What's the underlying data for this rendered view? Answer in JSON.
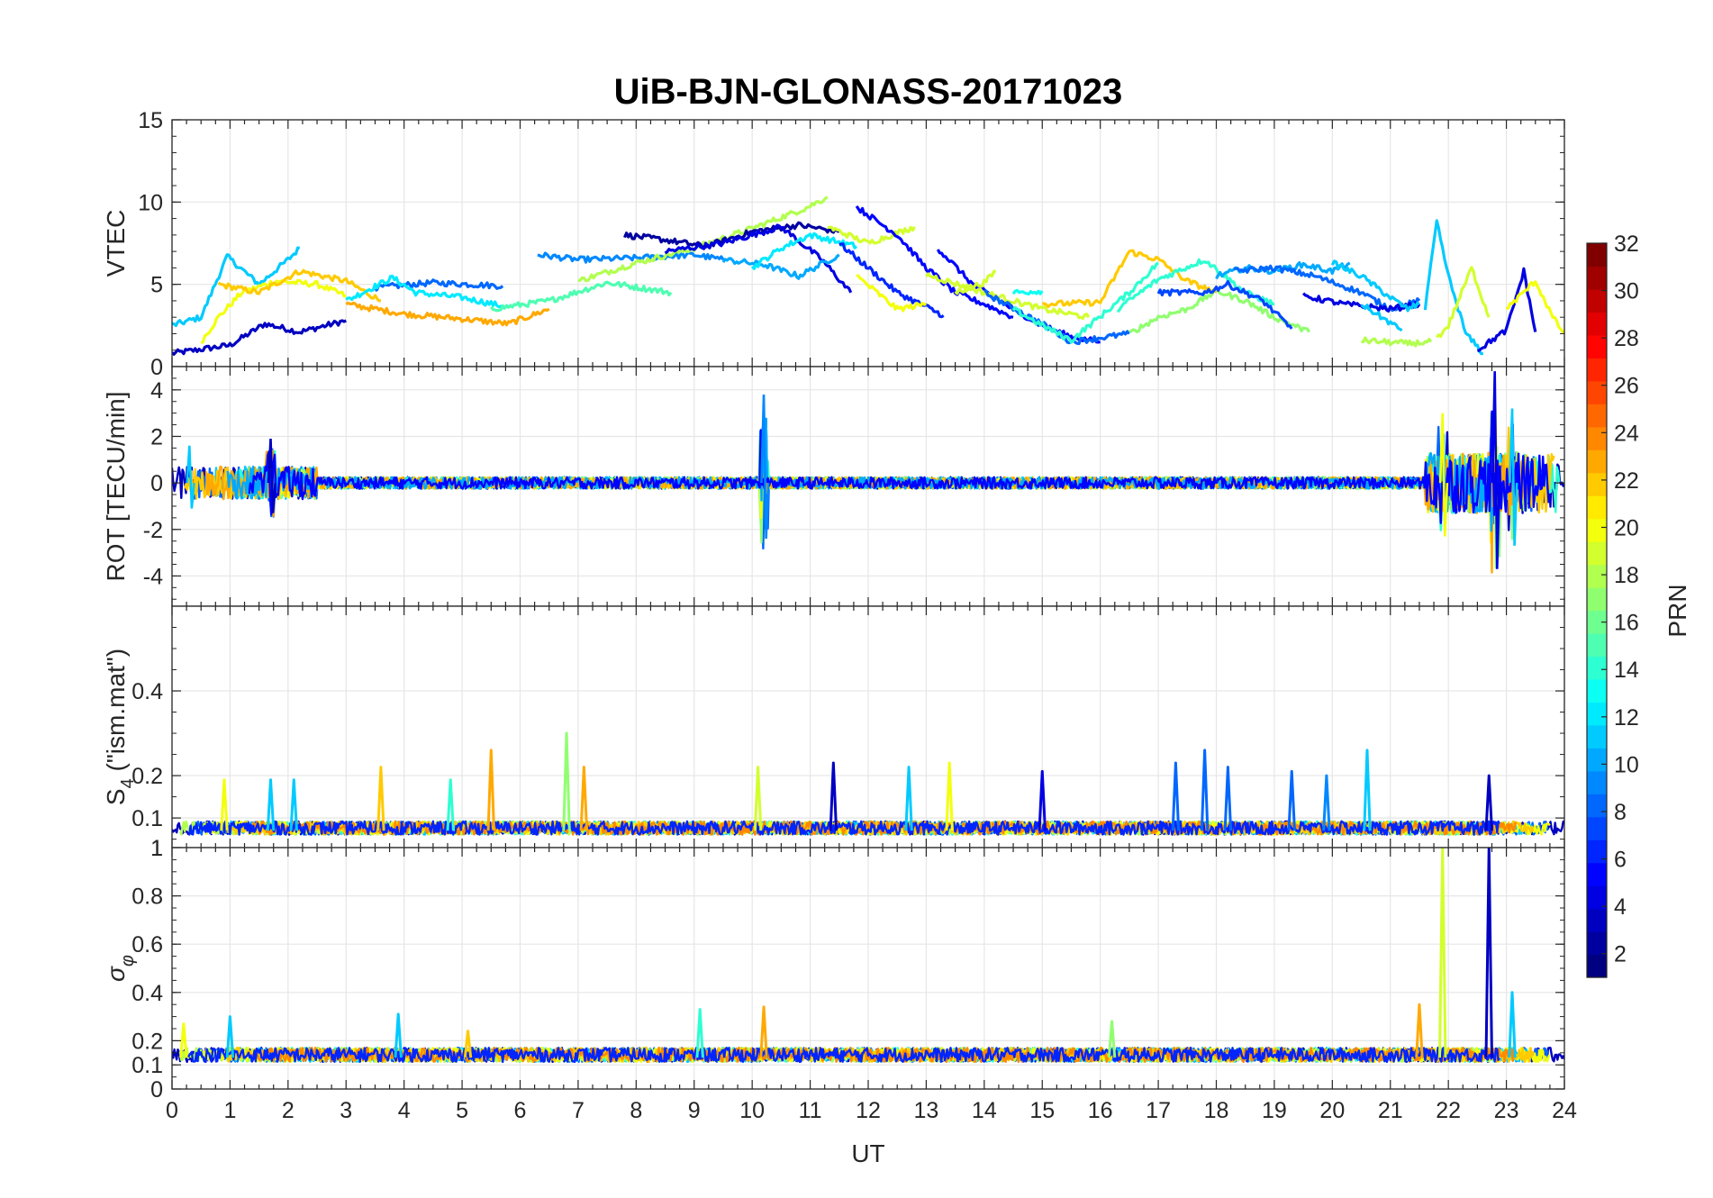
{
  "figure": {
    "title": "UiB-BJN-GLONASS-20171023"
  },
  "chart_data": [
    {
      "type": "line",
      "panel": "VTEC",
      "ylabel": "VTEC",
      "xlim": [
        0,
        24
      ],
      "ylim": [
        0,
        15
      ],
      "yticks": [
        0,
        5,
        10,
        15
      ],
      "grid": true,
      "series": [
        {
          "prn": 3,
          "points": [
            [
              0,
              0.8
            ],
            [
              1,
              1.3
            ],
            [
              1.6,
              2.6
            ],
            [
              2.2,
              2.1
            ],
            [
              3,
              2.8
            ]
          ]
        },
        {
          "prn": 11,
          "points": [
            [
              0,
              2.5
            ],
            [
              0.5,
              3
            ],
            [
              0.95,
              6.7
            ],
            [
              1.5,
              5
            ],
            [
              2,
              6.5
            ],
            [
              2.2,
              7.2
            ]
          ]
        },
        {
          "prn": 20,
          "points": [
            [
              0.5,
              1.5
            ],
            [
              0.8,
              3
            ],
            [
              1.2,
              4.5
            ],
            [
              1.8,
              5.2
            ],
            [
              2.5,
              5
            ],
            [
              3,
              4.3
            ]
          ]
        },
        {
          "prn": 22,
          "points": [
            [
              0.8,
              5
            ],
            [
              1.5,
              4.5
            ],
            [
              2.2,
              5.8
            ],
            [
              3,
              5.2
            ],
            [
              3.6,
              4
            ]
          ]
        },
        {
          "prn": 8,
          "points": [
            [
              3.5,
              4.8
            ],
            [
              4.5,
              5.1
            ],
            [
              5.7,
              4.9
            ]
          ]
        },
        {
          "prn": 12,
          "points": [
            [
              3,
              4
            ],
            [
              3.8,
              5.4
            ],
            [
              4.2,
              4.5
            ],
            [
              5,
              4.2
            ],
            [
              5.8,
              3.6
            ]
          ]
        },
        {
          "prn": 23,
          "points": [
            [
              3,
              3.8
            ],
            [
              4,
              3.2
            ],
            [
              5,
              2.9
            ],
            [
              5.8,
              2.6
            ],
            [
              6.5,
              3.5
            ]
          ]
        },
        {
          "prn": 9,
          "points": [
            [
              6.3,
              6.8
            ],
            [
              7,
              6.5
            ],
            [
              8,
              6.6
            ],
            [
              9,
              6.8
            ],
            [
              9.5,
              6.5
            ]
          ]
        },
        {
          "prn": 15,
          "points": [
            [
              5.5,
              3.5
            ],
            [
              6.5,
              4
            ],
            [
              7.5,
              5.1
            ],
            [
              8.6,
              4.5
            ]
          ]
        },
        {
          "prn": 18,
          "points": [
            [
              7,
              5.2
            ],
            [
              8,
              6.3
            ],
            [
              9,
              7.2
            ],
            [
              10,
              8.4
            ],
            [
              10.9,
              9.6
            ],
            [
              11.3,
              10.3
            ]
          ]
        },
        {
          "prn": 2,
          "points": [
            [
              7.8,
              8
            ],
            [
              8.5,
              7.7
            ],
            [
              9.2,
              7.3
            ],
            [
              10,
              8.2
            ],
            [
              10.8,
              8.6
            ],
            [
              11.5,
              8.2
            ]
          ]
        },
        {
          "prn": 4,
          "points": [
            [
              8.5,
              7
            ],
            [
              9.5,
              7.5
            ],
            [
              10.5,
              8.5
            ],
            [
              11.2,
              6.5
            ],
            [
              11.7,
              4.5
            ]
          ]
        },
        {
          "prn": 10,
          "points": [
            [
              9.5,
              6.5
            ],
            [
              10.2,
              6.2
            ],
            [
              10.8,
              5.5
            ],
            [
              11.5,
              6.8
            ]
          ]
        },
        {
          "prn": 12,
          "points": [
            [
              10,
              6
            ],
            [
              10.5,
              7.2
            ],
            [
              11,
              8
            ],
            [
              11.8,
              7.3
            ]
          ]
        },
        {
          "prn": 19,
          "points": [
            [
              11.3,
              8.5
            ],
            [
              12,
              7.5
            ],
            [
              12.8,
              8.5
            ]
          ]
        },
        {
          "prn": 5,
          "points": [
            [
              11.8,
              9.7
            ],
            [
              12.5,
              8
            ],
            [
              13,
              6
            ],
            [
              13.5,
              4.5
            ],
            [
              14,
              3.8
            ],
            [
              14.5,
              3
            ]
          ]
        },
        {
          "prn": 6,
          "points": [
            [
              11.5,
              7.5
            ],
            [
              12.5,
              4.5
            ],
            [
              13.3,
              3.1
            ]
          ]
        },
        {
          "prn": 20,
          "points": [
            [
              11.8,
              5.5
            ],
            [
              12.5,
              3.5
            ],
            [
              13,
              3.8
            ]
          ]
        },
        {
          "prn": 5,
          "points": [
            [
              13.2,
              7.2
            ],
            [
              13.8,
              5
            ],
            [
              14.5,
              3.5
            ],
            [
              15,
              2.5
            ],
            [
              15.5,
              1.8
            ],
            [
              16,
              1.5
            ]
          ]
        },
        {
          "prn": 19,
          "points": [
            [
              13.5,
              4.5
            ],
            [
              14,
              5.1
            ],
            [
              14.2,
              5.8
            ]
          ]
        },
        {
          "prn": 19,
          "points": [
            [
              13,
              5.6
            ],
            [
              14,
              4.5
            ],
            [
              15,
              3.5
            ],
            [
              15.8,
              3
            ]
          ]
        },
        {
          "prn": 8,
          "points": [
            [
              14,
              4.5
            ],
            [
              15,
              2.6
            ],
            [
              15.5,
              1.5
            ],
            [
              16.5,
              2
            ]
          ]
        },
        {
          "prn": 14,
          "points": [
            [
              14.5,
              3.5
            ],
            [
              15,
              2.5
            ],
            [
              15.5,
              1.6
            ],
            [
              16.5,
              4.5
            ],
            [
              17,
              6.3
            ]
          ]
        },
        {
          "prn": 13,
          "points": [
            [
              14.5,
              4.5
            ],
            [
              15,
              4.6
            ]
          ]
        },
        {
          "prn": 22,
          "points": [
            [
              15,
              3.8
            ],
            [
              16,
              3.9
            ],
            [
              16.5,
              7
            ],
            [
              17,
              6.5
            ],
            [
              17.5,
              5.2
            ],
            [
              18,
              4.5
            ]
          ]
        },
        {
          "prn": 17,
          "points": [
            [
              16.5,
              2
            ],
            [
              17,
              3
            ],
            [
              17.5,
              3.5
            ],
            [
              18,
              4.6
            ],
            [
              18.5,
              4
            ],
            [
              19,
              3
            ],
            [
              19.6,
              2.1
            ]
          ]
        },
        {
          "prn": 14,
          "points": [
            [
              16.3,
              3.5
            ],
            [
              17,
              5.3
            ],
            [
              17.8,
              6.5
            ],
            [
              18.5,
              4.5
            ],
            [
              19,
              3.8
            ]
          ]
        },
        {
          "prn": 7,
          "points": [
            [
              17,
              4.5
            ],
            [
              17.8,
              4.5
            ],
            [
              18.2,
              5
            ],
            [
              18.8,
              4
            ],
            [
              19.3,
              2.3
            ]
          ]
        },
        {
          "prn": 10,
          "points": [
            [
              18,
              5.5
            ],
            [
              18.5,
              6
            ],
            [
              19,
              5.8
            ],
            [
              19.5,
              6.2
            ],
            [
              20,
              5.8
            ],
            [
              20.3,
              6.3
            ]
          ]
        },
        {
          "prn": 8,
          "points": [
            [
              18.3,
              5.8
            ],
            [
              19,
              6
            ],
            [
              19.7,
              5.5
            ],
            [
              20.5,
              4.5
            ],
            [
              21,
              3.5
            ],
            [
              21.5,
              4
            ]
          ]
        },
        {
          "prn": 4,
          "points": [
            [
              19.5,
              4.3
            ],
            [
              20.2,
              3.8
            ],
            [
              21,
              3.5
            ],
            [
              21.5,
              3.8
            ]
          ]
        },
        {
          "prn": 11,
          "points": [
            [
              20,
              6.3
            ],
            [
              20.5,
              5.5
            ],
            [
              21,
              4.2
            ],
            [
              21.3,
              3.5
            ],
            [
              21.5,
              3.8
            ]
          ]
        },
        {
          "prn": 11,
          "points": [
            [
              20.5,
              3.8
            ],
            [
              21.2,
              2.2
            ]
          ]
        },
        {
          "prn": 18,
          "points": [
            [
              20.5,
              1.6
            ],
            [
              21.3,
              1.4
            ],
            [
              21.7,
              1.5
            ]
          ]
        },
        {
          "prn": 11,
          "points": [
            [
              21.6,
              3.5
            ],
            [
              21.8,
              8.8
            ],
            [
              22,
              5.5
            ],
            [
              22.3,
              2
            ],
            [
              22.6,
              0.8
            ]
          ]
        },
        {
          "prn": 19,
          "points": [
            [
              21.8,
              1.7
            ],
            [
              22,
              2.5
            ],
            [
              22.4,
              6
            ],
            [
              22.7,
              3
            ]
          ]
        },
        {
          "prn": 4,
          "points": [
            [
              22.5,
              1
            ],
            [
              23,
              2.2
            ],
            [
              23.3,
              5.8
            ],
            [
              23.5,
              2.1
            ]
          ]
        },
        {
          "prn": 20,
          "points": [
            [
              23,
              3.5
            ],
            [
              23.5,
              5.2
            ],
            [
              23.8,
              3
            ],
            [
              24,
              2
            ]
          ]
        }
      ]
    },
    {
      "type": "line",
      "panel": "ROT",
      "ylabel": "ROT [TECU/min]",
      "xlim": [
        0,
        24
      ],
      "ylim": [
        -5.3,
        5
      ],
      "yticks": [
        -4,
        -2,
        0,
        2,
        4
      ],
      "grid": true,
      "features": [
        {
          "x": 0.3,
          "min": -1.1,
          "max": 1.6
        },
        {
          "x": 1.7,
          "min": -1.3,
          "max": 1.9
        },
        {
          "x": 10.2,
          "min": -2.4,
          "max": 3.8
        },
        {
          "x": 21.9,
          "min": -2.3,
          "max": 3
        },
        {
          "x": 22.8,
          "min": -3.7,
          "max": 4.8
        },
        {
          "x": 23.1,
          "min": -2.7,
          "max": 3.2
        }
      ]
    },
    {
      "type": "line",
      "panel": "S4",
      "ylabel": "S4 (\"ism.mat\")",
      "ylabel_main": "S",
      "ylabel_sub": "4",
      "ylabel_tail": " (\"ism.mat\")",
      "xlim": [
        0,
        24
      ],
      "ylim": [
        0.03,
        0.6
      ],
      "yticks": [
        0.1,
        0.2,
        0.4
      ],
      "grid": true,
      "baseline": 0.07,
      "peaks": [
        {
          "x": 0.9,
          "y": 0.19
        },
        {
          "x": 1.7,
          "y": 0.19
        },
        {
          "x": 2.1,
          "y": 0.19
        },
        {
          "x": 3.6,
          "y": 0.22
        },
        {
          "x": 4.8,
          "y": 0.19
        },
        {
          "x": 5.5,
          "y": 0.26
        },
        {
          "x": 6.8,
          "y": 0.3
        },
        {
          "x": 7.1,
          "y": 0.22
        },
        {
          "x": 10.1,
          "y": 0.22
        },
        {
          "x": 11.4,
          "y": 0.23
        },
        {
          "x": 12.7,
          "y": 0.22
        },
        {
          "x": 13.4,
          "y": 0.23
        },
        {
          "x": 15,
          "y": 0.21
        },
        {
          "x": 17.3,
          "y": 0.23
        },
        {
          "x": 17.8,
          "y": 0.26
        },
        {
          "x": 18.2,
          "y": 0.22
        },
        {
          "x": 19.3,
          "y": 0.21
        },
        {
          "x": 19.9,
          "y": 0.2
        },
        {
          "x": 20.6,
          "y": 0.26
        },
        {
          "x": 22.7,
          "y": 0.2
        }
      ]
    },
    {
      "type": "line",
      "panel": "sigma_phi",
      "ylabel": "σφ",
      "ylabel_main": "σ",
      "ylabel_sub": "φ",
      "xlabel": "UT",
      "xlim": [
        0,
        24
      ],
      "ylim": [
        0,
        1
      ],
      "yticks": [
        0,
        0.1,
        0.2,
        0.4,
        0.6,
        0.8,
        1
      ],
      "top_tick_label": "1",
      "xticks": [
        0,
        1,
        2,
        3,
        4,
        5,
        6,
        7,
        8,
        9,
        10,
        11,
        12,
        13,
        14,
        15,
        16,
        17,
        18,
        19,
        20,
        21,
        22,
        23,
        24
      ],
      "grid": true,
      "baseline": 0.13,
      "peaks": [
        {
          "x": 0.2,
          "y": 0.27
        },
        {
          "x": 1,
          "y": 0.3
        },
        {
          "x": 3.9,
          "y": 0.31
        },
        {
          "x": 5.1,
          "y": 0.24
        },
        {
          "x": 9.1,
          "y": 0.33
        },
        {
          "x": 10.2,
          "y": 0.34
        },
        {
          "x": 16.2,
          "y": 0.28
        },
        {
          "x": 21.5,
          "y": 0.35
        },
        {
          "x": 21.9,
          "y": 1
        },
        {
          "x": 22.7,
          "y": 1
        },
        {
          "x": 23.1,
          "y": 0.4
        }
      ]
    }
  ],
  "colorbar": {
    "label": "PRN",
    "range": [
      1,
      32
    ],
    "ticks": [
      2,
      4,
      6,
      8,
      10,
      12,
      14,
      16,
      18,
      20,
      22,
      24,
      26,
      28,
      30,
      32
    ],
    "colormap": "jet"
  }
}
